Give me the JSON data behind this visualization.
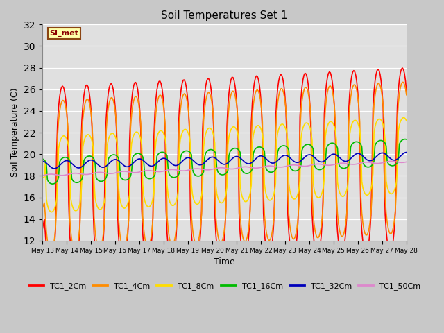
{
  "title": "Soil Temperatures Set 1",
  "xlabel": "Time",
  "ylabel": "Soil Temperature (C)",
  "ylim": [
    12,
    32
  ],
  "yticks": [
    12,
    14,
    16,
    18,
    20,
    22,
    24,
    26,
    28,
    30,
    32
  ],
  "start_day": 13,
  "end_day": 28,
  "n_days": 15,
  "colors": {
    "TC1_2Cm": "#FF0000",
    "TC1_4Cm": "#FF8C00",
    "TC1_8Cm": "#FFDD00",
    "TC1_16Cm": "#00BB00",
    "TC1_32Cm": "#0000BB",
    "TC1_50Cm": "#DD88CC"
  },
  "legend_label": "SI_met",
  "fig_facecolor": "#C8C8C8",
  "ax_facecolor": "#E0E0E0",
  "grid_color": "#FFFFFF",
  "linewidth": 1.2
}
